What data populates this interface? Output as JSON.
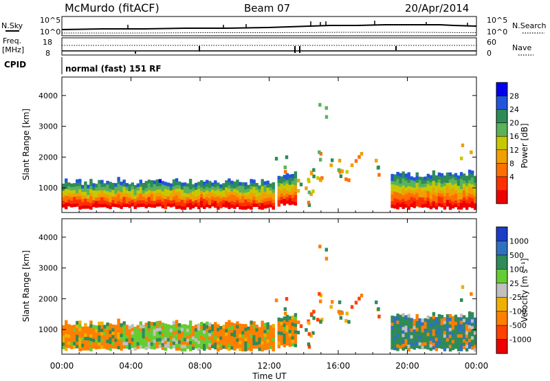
{
  "header": {
    "station": "McMurdo (fitACF)",
    "beam": "Beam 07",
    "date": "20/Apr/2014"
  },
  "strip": {
    "nsky_label": "N.Sky",
    "nsky_ticks": [
      "10^5",
      "10^0"
    ],
    "nsearch_label": "N.Search",
    "nsearch_ticks": [
      "10^5",
      "10^0"
    ],
    "freq_label": "Freq.",
    "freq_unit": "[MHz]",
    "freq_ticks": [
      "18",
      "8"
    ],
    "nave_label": "Nave",
    "nave_ticks": [
      "60",
      "0"
    ],
    "cpid_label": "CPID",
    "cpid_value": "normal (fast) 151 RF"
  },
  "chart_data": [
    {
      "type": "heatmap",
      "name": "power",
      "ylabel": "Slant Range [km]",
      "yticks": [
        "4000",
        "3000",
        "2000",
        "1000"
      ],
      "ylim": [
        200,
        4600
      ],
      "colorbar_label": "Power [dB]",
      "colorbar_ticks": [
        "28",
        "24",
        "20",
        "16",
        "12",
        "8",
        "4"
      ],
      "colors": [
        "#0000ee",
        "#2255dd",
        "#2e8b57",
        "#5ab25a",
        "#c8c800",
        "#f0a000",
        "#ff7000",
        "#ff3000",
        "#ee0000"
      ],
      "note_bands": [
        {
          "t0": 0.0,
          "t1": 12.3,
          "r0": 350,
          "r1": 1150
        },
        {
          "t0": 12.4,
          "t1": 13.6,
          "r0": 450,
          "r1": 1400
        },
        {
          "t0": 19.0,
          "t1": 24.0,
          "r0": 350,
          "r1": 1400
        }
      ]
    },
    {
      "type": "heatmap",
      "name": "velocity",
      "ylabel": "Slant Range [km]",
      "yticks": [
        "4000",
        "3000",
        "2000",
        "1000"
      ],
      "ylim": [
        200,
        4600
      ],
      "colorbar_label": "Velocity [m s⁻¹]",
      "colorbar_ticks": [
        "1000",
        "500",
        "100",
        "25",
        "-25",
        "-100",
        "-500",
        "-1000"
      ],
      "colors": [
        "#1a3cc8",
        "#3070c0",
        "#2e8b57",
        "#66cc33",
        "#c0c0c0",
        "#f0b000",
        "#ff7f00",
        "#ff4000",
        "#ee0000"
      ]
    }
  ],
  "xaxis": {
    "ticks": [
      "00:00",
      "04:00",
      "08:00",
      "12:00",
      "16:00",
      "20:00",
      "00:00"
    ],
    "label": "Time UT"
  }
}
